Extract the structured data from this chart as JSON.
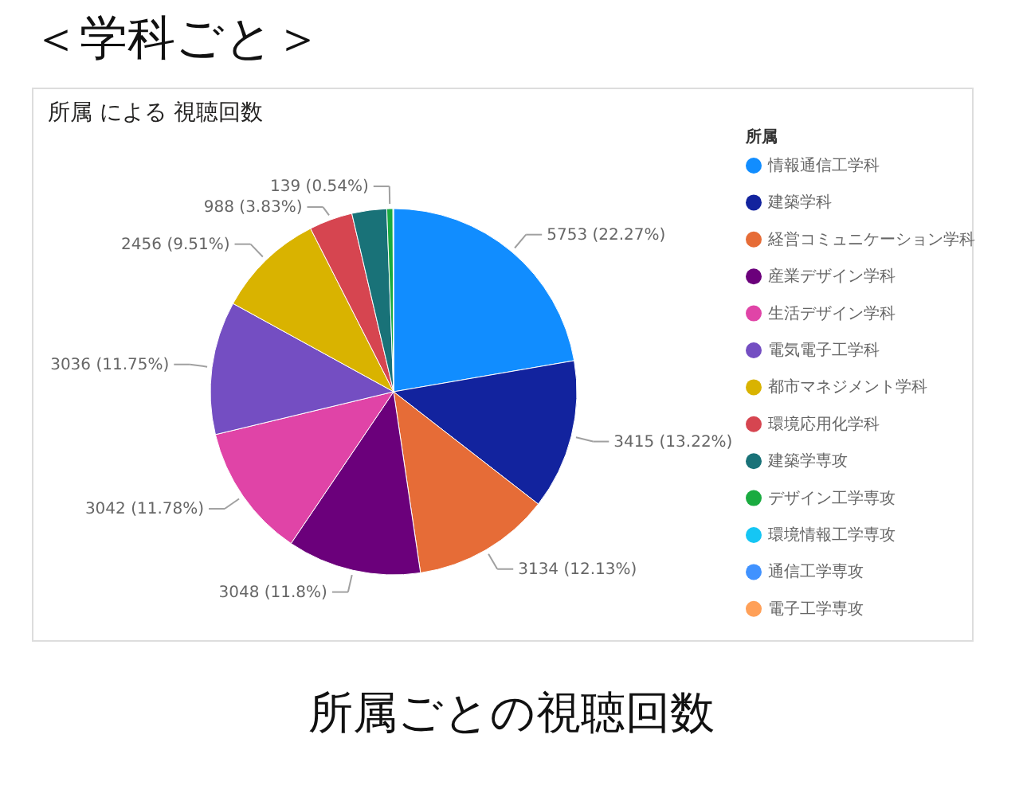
{
  "chart_data": {
    "type": "pie",
    "title": "＜学科ごと＞",
    "subtitle": "所属 による 視聴回数",
    "annotations": [
      "所属ごとの視聴回数"
    ],
    "legend_title": "所属",
    "legend": "right",
    "categories": [
      "情報通信工学科",
      "建築学科",
      "経営コミュニケーション学科",
      "産業デザイン学科",
      "生活デザイン学科",
      "電気電子工学科",
      "都市マネジメント学科",
      "環境応用化学科",
      "建築学専攻",
      "デザイン工学専攻",
      "環境情報工学専攻",
      "通信工学専攻",
      "電子工学専攻"
    ],
    "values": [
      5753,
      3415,
      3134,
      3048,
      3042,
      3036,
      2456,
      988,
      792,
      139,
      14,
      null,
      null
    ],
    "colors": [
      "#118dff",
      "#12239e",
      "#e66c37",
      "#6b007b",
      "#e044a7",
      "#744ec2",
      "#d9b300",
      "#d64550",
      "#197278",
      "#1aab40",
      "#15c6f4",
      "#4092ff",
      "#ffa058"
    ],
    "value_labels": [
      "5753 (22.27%)",
      "3415 (13.22%)",
      "3134 (12.13%)",
      "3048 (11.8%)",
      "3042 (11.78%)",
      "3036 (11.75%)",
      "2456 (9.51%)",
      "988 (3.83%)",
      null,
      "139 (0.54%)",
      null,
      null,
      null
    ]
  }
}
